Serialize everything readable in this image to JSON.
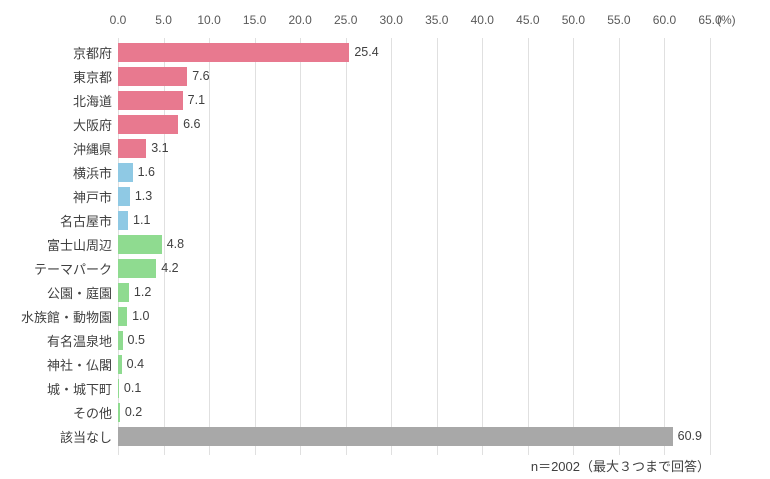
{
  "footnote": "n＝2002（最大３つまで回答）",
  "chart_data": {
    "type": "bar",
    "orientation": "horizontal",
    "title": "",
    "xlabel": "",
    "ylabel": "",
    "unit_label": "(%)",
    "xlim": [
      0,
      65
    ],
    "grid": true,
    "legend": false,
    "axis_position": "top",
    "ticks": [
      "0.0",
      "5.0",
      "10.0",
      "15.0",
      "20.0",
      "25.0",
      "30.0",
      "35.0",
      "40.0",
      "45.0",
      "50.0",
      "55.0",
      "60.0",
      "65.0"
    ],
    "categories": [
      "京都府",
      "東京都",
      "北海道",
      "大阪府",
      "沖縄県",
      "横浜市",
      "神戸市",
      "名古屋市",
      "富士山周辺",
      "テーマパーク",
      "公園・庭園",
      "水族館・動物園",
      "有名温泉地",
      "神社・仏閣",
      "城・城下町",
      "その他",
      "該当なし"
    ],
    "values": [
      25.4,
      7.6,
      7.1,
      6.6,
      3.1,
      1.6,
      1.3,
      1.1,
      4.8,
      4.2,
      1.2,
      1.0,
      0.5,
      0.4,
      0.1,
      0.2,
      60.9
    ],
    "value_labels": [
      "25.4",
      "7.6",
      "7.1",
      "6.6",
      "3.1",
      "1.6",
      "1.3",
      "1.1",
      "4.8",
      "4.2",
      "1.2",
      "1.0",
      "0.5",
      "0.4",
      "0.1",
      "0.2",
      "60.9"
    ],
    "groups": [
      "pink",
      "pink",
      "pink",
      "pink",
      "pink",
      "blue",
      "blue",
      "blue",
      "green",
      "green",
      "green",
      "green",
      "green",
      "green",
      "green",
      "green",
      "gray"
    ],
    "group_colors": {
      "pink": "#E8798F",
      "blue": "#8FC9E4",
      "green": "#8FDB90",
      "gray": "#A8A8A8"
    },
    "gridline_color": "#E0E0E0"
  }
}
